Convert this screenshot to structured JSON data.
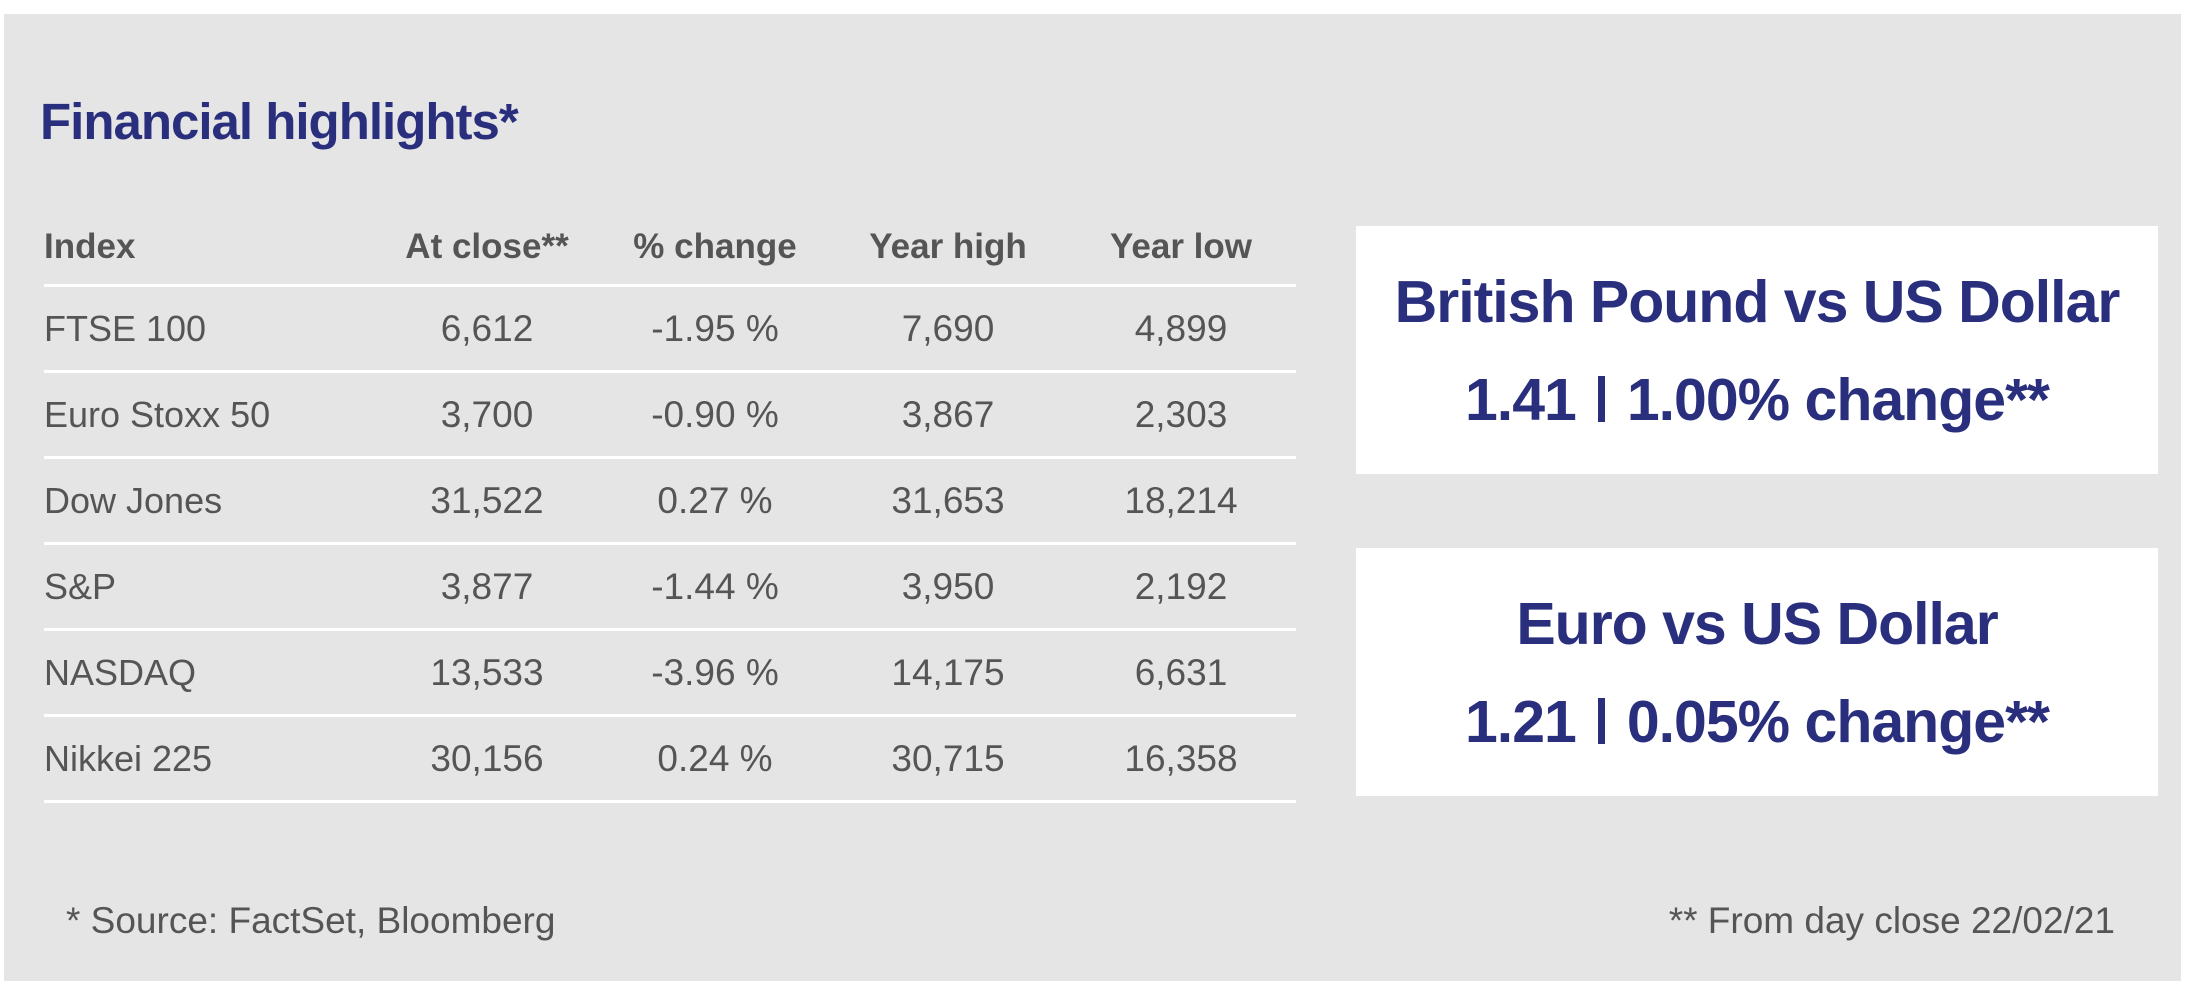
{
  "title": "Financial highlights*",
  "table": {
    "headers": [
      "Index",
      "At close**",
      "% change",
      "Year high",
      "Year low"
    ],
    "rows": [
      [
        "FTSE 100",
        "6,612",
        "-1.95 %",
        "7,690",
        "4,899"
      ],
      [
        "Euro Stoxx 50",
        "3,700",
        "-0.90 %",
        "3,867",
        "2,303"
      ],
      [
        "Dow Jones",
        "31,522",
        "0.27 %",
        "31,653",
        "18,214"
      ],
      [
        "S&P",
        "3,877",
        "-1.44 %",
        "3,950",
        "2,192"
      ],
      [
        "NASDAQ",
        "13,533",
        "-3.96 %",
        "14,175",
        "6,631"
      ],
      [
        "Nikkei 225",
        "30,156",
        "0.24 %",
        "30,715",
        "16,358"
      ]
    ]
  },
  "rates": [
    {
      "title": "British Pound vs US Dollar",
      "value": "1.41",
      "change": "1.00% change**"
    },
    {
      "title": "Euro vs US Dollar",
      "value": "1.21",
      "change": "0.05% change**"
    }
  ],
  "footnotes": {
    "source": "* Source: FactSet, Bloomberg",
    "date_note": "** From day close 22/02/21"
  },
  "colors": {
    "brand_navy": "#2a2f7d",
    "panel_bg": "#e5e5e5",
    "text_gray": "#555555"
  }
}
